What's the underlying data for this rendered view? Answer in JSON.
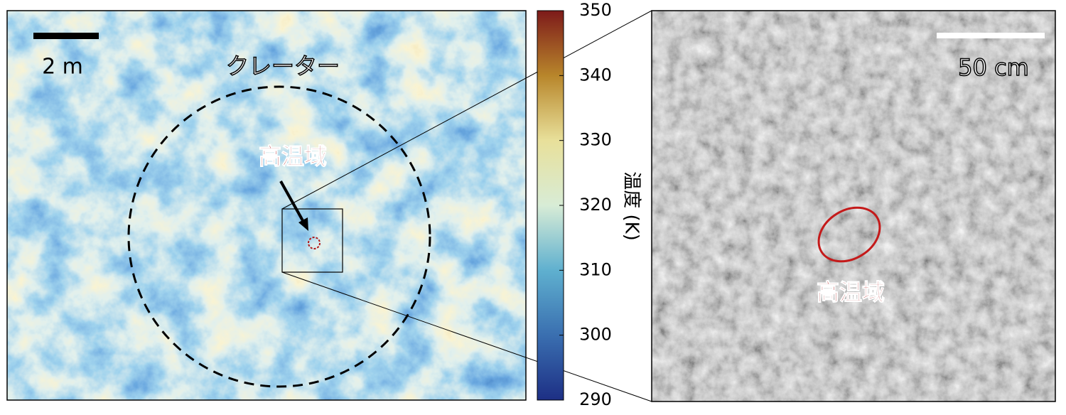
{
  "thermal_panel": {
    "scale_label": "2 m",
    "crater_label": "クレーター",
    "hot_label": "高温域"
  },
  "colorbar": {
    "label": "温度 (K)",
    "lim": [
      290,
      350
    ],
    "ticks": [
      290,
      300,
      310,
      320,
      330,
      340,
      350
    ]
  },
  "image_panel": {
    "scale_label": "50 cm",
    "hot_label": "高温域"
  }
}
